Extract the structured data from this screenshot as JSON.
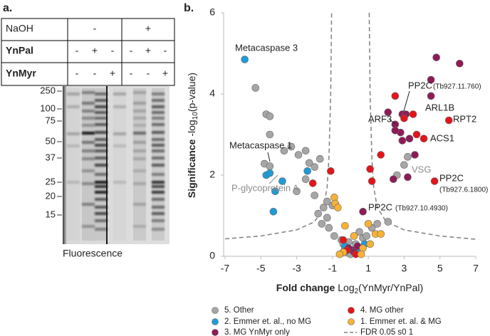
{
  "panel_a": {
    "label": "a.",
    "rows": [
      {
        "label": "NaOH",
        "cells": [
          "-",
          "+"
        ]
      },
      {
        "label": "YnPal",
        "cells": [
          "-",
          "+",
          "-",
          "-",
          "+",
          "-"
        ]
      },
      {
        "label": "YnMyr",
        "cells": [
          "-",
          "-",
          "+",
          "-",
          "-",
          "+"
        ]
      }
    ],
    "markers": [
      250,
      100,
      75,
      50,
      37,
      25,
      20,
      15
    ],
    "caption": "Fluorescence"
  },
  "chart_data": {
    "type": "scatter",
    "panel_label": "b.",
    "x_label": [
      "Fold change",
      "Log",
      "2",
      "(YnMyr/YnPal)"
    ],
    "y_label": [
      "Significance",
      "-log",
      "10",
      "(p-value)"
    ],
    "xlim": [
      -7,
      7
    ],
    "xticks": [
      -7,
      -5,
      -3,
      -1,
      1,
      3,
      5,
      7
    ],
    "ylim": [
      0,
      6
    ],
    "yticks": [
      0,
      2,
      4,
      6
    ],
    "grid": false,
    "series": [
      {
        "name": "5. Other",
        "color": "#a6a6a6",
        "x": [
          -5.3,
          -4.7,
          -4.5,
          -4.5,
          -4.8,
          -4.5,
          -3.7,
          -3.3,
          -2.9,
          -2.5,
          -2.3,
          -2.0,
          -1.7,
          -2.5,
          -3.0,
          -2.0,
          -1.5,
          -1.8,
          -1.3,
          -1.2,
          -0.9,
          -0.5,
          -0.4,
          -0.3,
          -0.2,
          0.1,
          0.3,
          0.5,
          0.7,
          0.9,
          0.5,
          1.2,
          1.5,
          2.1,
          0.0,
          -0.1,
          0.2,
          3.2,
          2.6,
          3.0,
          -1.3,
          -1.0,
          -1.6
        ],
        "values": [
          4.15,
          3.5,
          3.45,
          3.0,
          2.28,
          2.22,
          2.6,
          2.7,
          2.5,
          2.6,
          2.3,
          2.2,
          2.4,
          1.9,
          1.6,
          1.5,
          1.2,
          1.05,
          0.95,
          0.7,
          0.5,
          0.4,
          0.3,
          0.2,
          0.1,
          0.15,
          0.3,
          0.2,
          0.45,
          0.5,
          0.6,
          0.7,
          0.8,
          0.85,
          0.05,
          0.35,
          0.5,
          2.45,
          2.0,
          2.25,
          1.35,
          1.25,
          0.8
        ]
      },
      {
        "name": "2. Emmer et. al., no MG",
        "color": "#1f9bd7",
        "x": [
          -5.9,
          -4.7,
          -4.5,
          -3.8,
          -4.2,
          -4.3,
          -2.4,
          -0.3,
          0.5,
          0.8
        ],
        "values": [
          4.85,
          2.0,
          2.05,
          1.85,
          1.6,
          1.1,
          2.1,
          0.25,
          0.1,
          0.3
        ]
      },
      {
        "name": "3. MG YnMyr only",
        "color": "#8e1b57",
        "x": [
          4.8,
          6.1,
          4.5,
          4.5,
          2.9,
          3.1,
          2.5,
          2.8,
          3.3,
          2.5,
          2.1,
          3.6,
          2.9,
          2.4,
          3.2,
          0.7,
          0.1,
          0.2,
          0.4,
          -0.1
        ],
        "values": [
          4.9,
          4.75,
          4.35,
          3.95,
          3.5,
          3.5,
          3.25,
          3.05,
          2.9,
          3.1,
          3.55,
          2.5,
          2.85,
          1.9,
          1.95,
          1.1,
          0.15,
          0.1,
          0.25,
          0.2
        ]
      },
      {
        "name": "4. MG other",
        "color": "#e3151a",
        "x": [
          2.5,
          3.0,
          3.5,
          4.1,
          3.7,
          5.5,
          4.7,
          1.1,
          1.2,
          -1.1,
          -2.1,
          1.7,
          -0.4,
          0.3,
          -0.2
        ],
        "values": [
          3.95,
          3.4,
          3.5,
          2.9,
          3.0,
          3.35,
          1.85,
          2.15,
          1.85,
          2.1,
          1.8,
          2.5,
          0.4,
          0.05,
          0.15
        ]
      },
      {
        "name": "1. Emmer et. al. & MG",
        "color": "#f9b233",
        "x": [
          -0.9,
          -0.85,
          -0.7,
          -0.3,
          0.2,
          0.7,
          1.4,
          1.7,
          1.1,
          -0.4,
          0.6,
          -0.6,
          1.0
        ],
        "values": [
          1.45,
          1.3,
          1.2,
          0.75,
          0.5,
          0.2,
          0.55,
          0.55,
          0.3,
          0.1,
          0.05,
          0.05,
          0.8
        ]
      },
      {
        "name": "FDR 0.05 s0 1",
        "color": "#808080",
        "type": "line",
        "dashed": true,
        "x": [
          -7,
          -5,
          -3,
          -2,
          -1.5,
          -1.3,
          -1.2,
          -1.1,
          -1.05,
          null,
          1.05,
          1.1,
          1.2,
          1.3,
          1.5,
          2,
          3,
          5,
          7
        ],
        "values": [
          0.43,
          0.5,
          0.65,
          0.85,
          1.2,
          1.7,
          2.4,
          4,
          6,
          null,
          6,
          4,
          2.4,
          1.7,
          1.2,
          0.85,
          0.65,
          0.5,
          0.42
        ]
      }
    ],
    "annotations": [
      {
        "text": "Metacaspase 3"
      },
      {
        "text": "Metacaspase 1"
      },
      {
        "text": "P-glycoprotein A",
        "color": "#8c8c8c"
      },
      {
        "text": "ARL1B"
      },
      {
        "text": "PP2C",
        "detail": "(Tb927.11.760)"
      },
      {
        "text": "ARF3"
      },
      {
        "text": "RPT2"
      },
      {
        "text": "ACS1"
      },
      {
        "text": "VSG",
        "color": "#8c8c8c"
      },
      {
        "text": "PP2C",
        "detail": "(Tb927.6.1800)"
      },
      {
        "text": "PP2C",
        "detail": "(Tb927.10.4930)"
      }
    ]
  }
}
